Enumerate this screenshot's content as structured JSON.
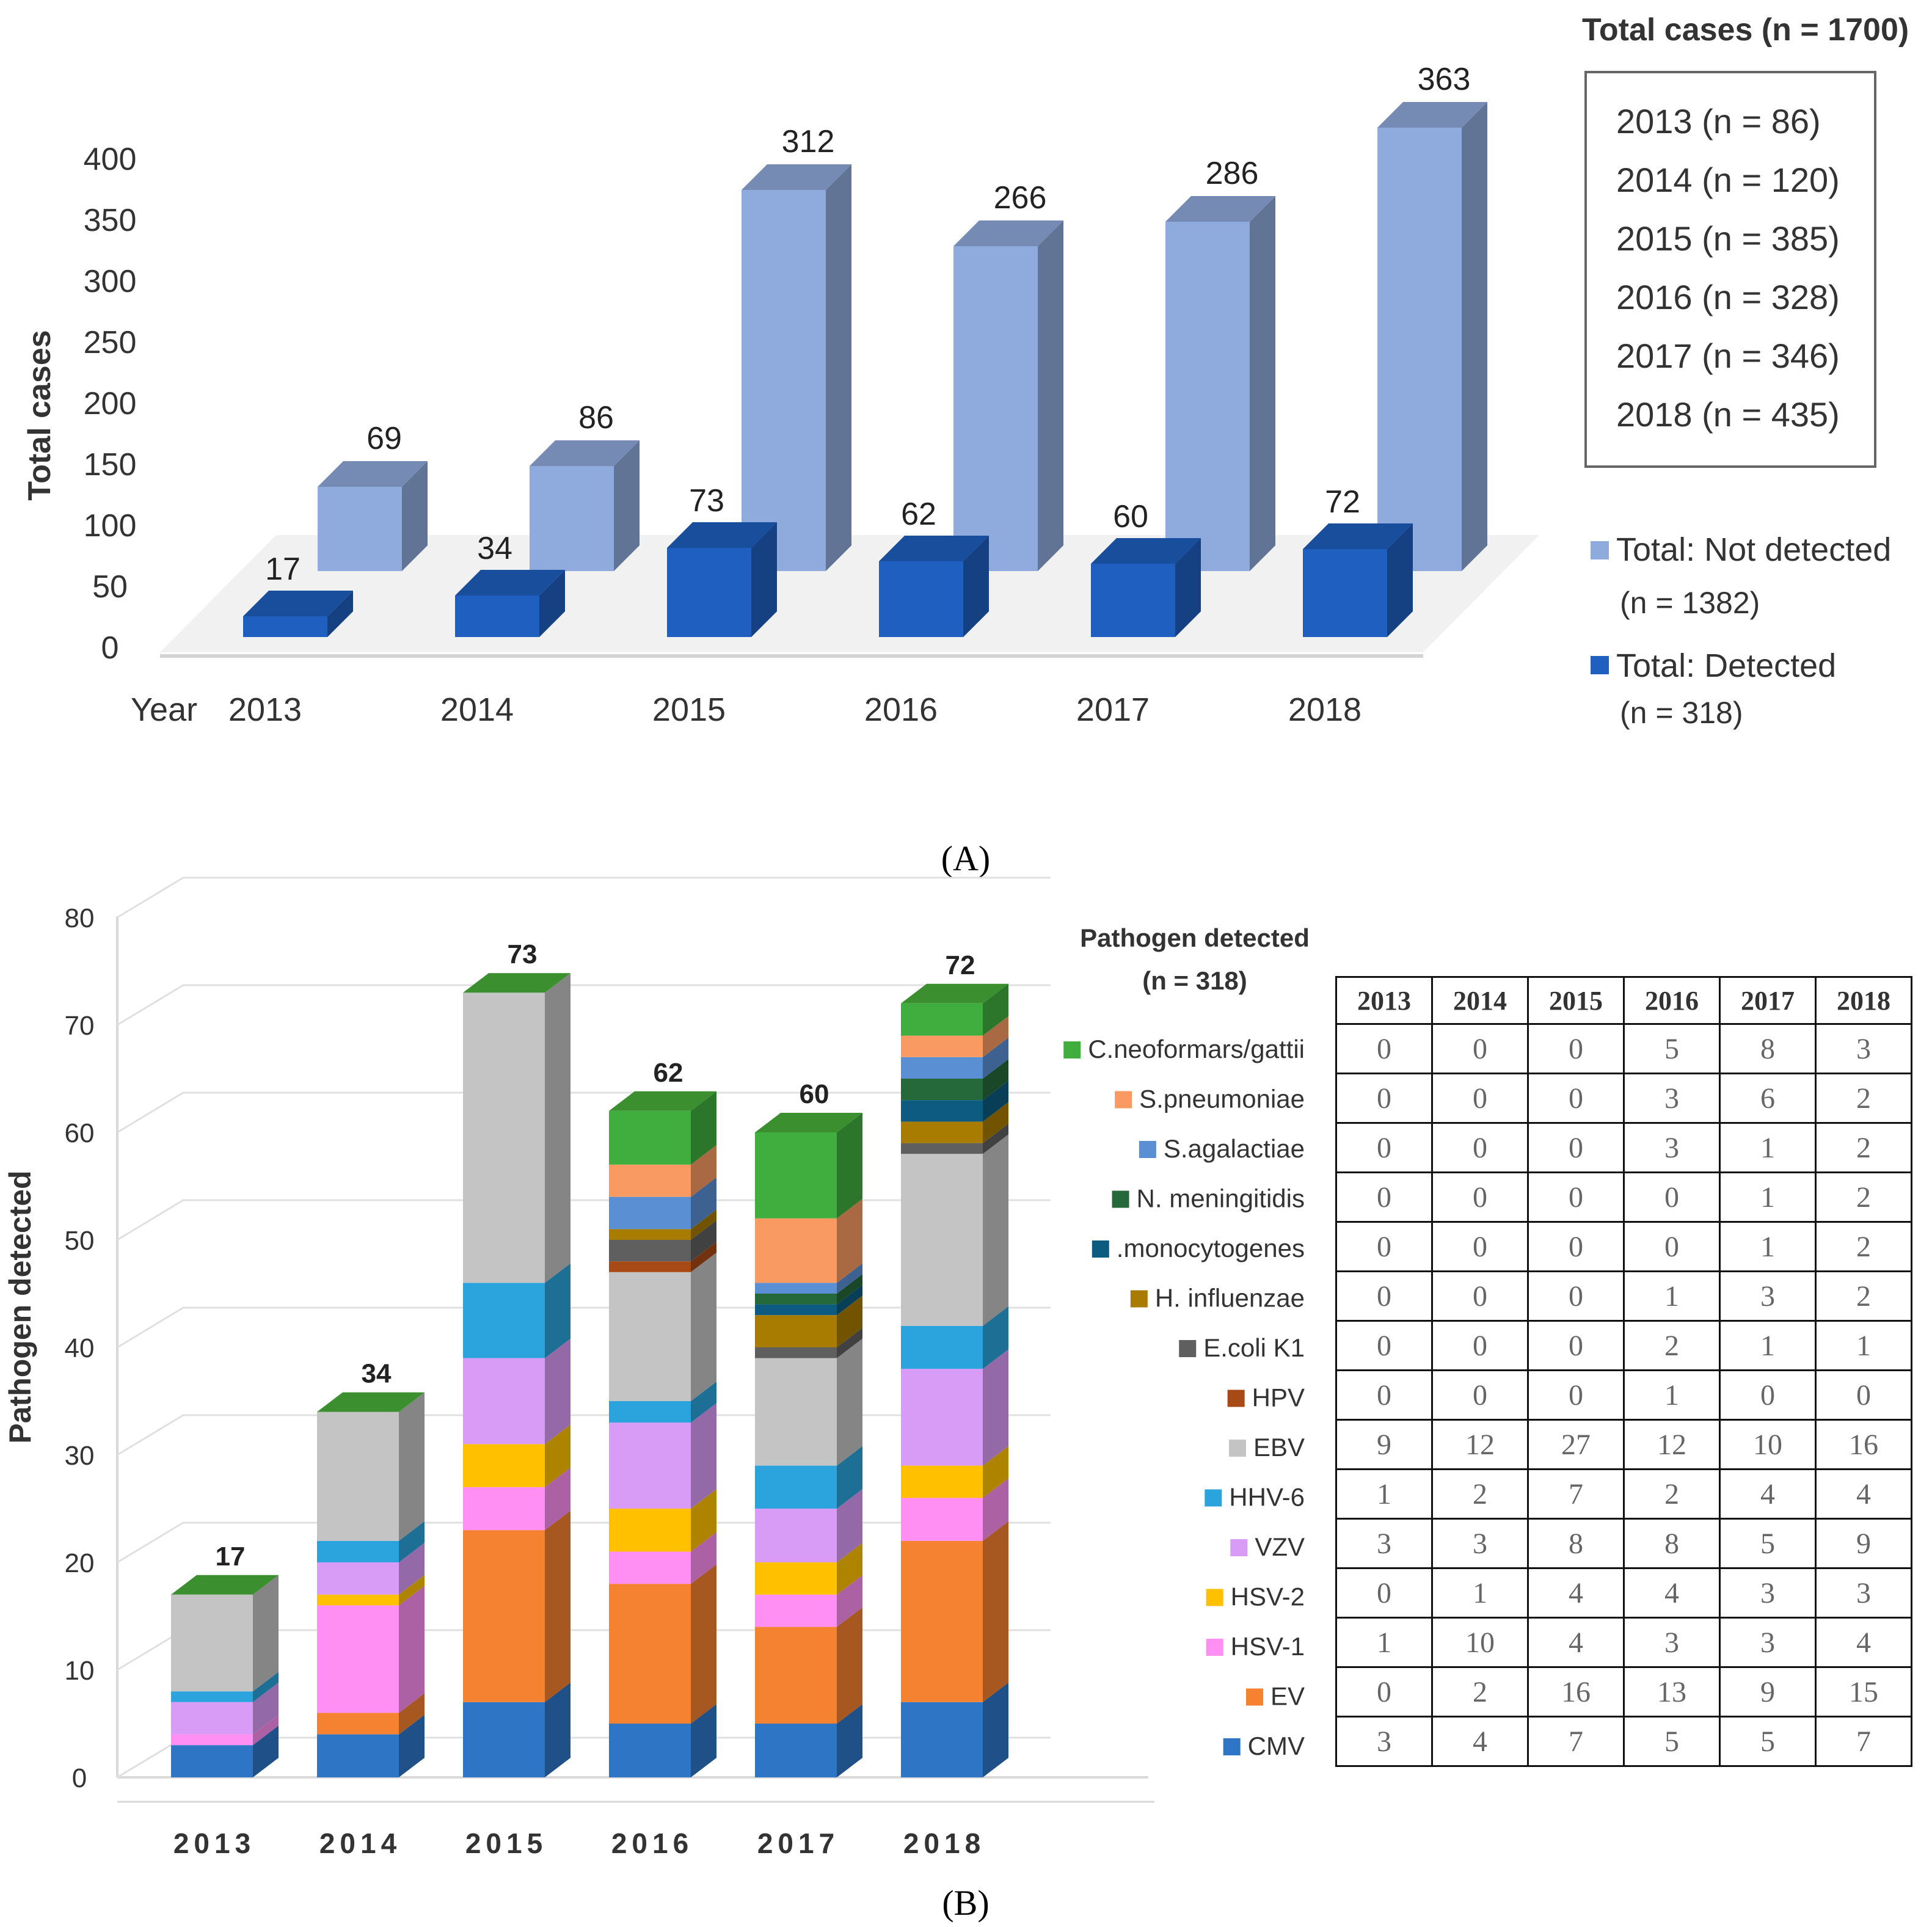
{
  "chart_data": [
    {
      "type": "bar",
      "panel": "A",
      "title": "",
      "ylabel": "Total cases",
      "xlabel": "Year",
      "ylim": [
        0,
        400
      ],
      "yticks": [
        0,
        50,
        100,
        150,
        200,
        250,
        300,
        350,
        400
      ],
      "categories": [
        "2013",
        "2014",
        "2015",
        "2016",
        "2017",
        "2018"
      ],
      "series": [
        {
          "name": "Total: Detected",
          "count_label": "(n = 318)",
          "color": "#1f5fbf",
          "values": [
            17,
            34,
            73,
            62,
            60,
            72
          ]
        },
        {
          "name": "Total: Not detected",
          "count_label": "(n = 1382)",
          "color": "#8faadc",
          "values": [
            69,
            86,
            312,
            266,
            286,
            363
          ]
        }
      ],
      "totals_box": {
        "title": "Total cases (n = 1700)",
        "entries": [
          "2013 (n = 86)",
          "2014 (n = 120)",
          "2015 (n = 385)",
          "2016 (n = 328)",
          "2017 (n = 346)",
          "2018 (n = 435)"
        ]
      }
    },
    {
      "type": "bar",
      "stacked": true,
      "panel": "B",
      "ylabel": "Pathogen detected",
      "ylim": [
        0,
        80
      ],
      "yticks": [
        0,
        10,
        20,
        30,
        40,
        50,
        60,
        70,
        80
      ],
      "categories": [
        "2013",
        "2014",
        "2015",
        "2016",
        "2017",
        "2018"
      ],
      "totals": [
        17,
        34,
        73,
        62,
        60,
        72
      ],
      "legend_title": "Pathogen detected",
      "legend_subtitle": "(n = 318)",
      "series": [
        {
          "name": "CMV",
          "color": "#2e75c6",
          "values": [
            3,
            4,
            7,
            5,
            5,
            7
          ]
        },
        {
          "name": "EV",
          "color": "#f58231",
          "values": [
            0,
            2,
            16,
            13,
            9,
            15
          ]
        },
        {
          "name": "HSV-1",
          "color": "#ff8ff2",
          "values": [
            1,
            10,
            4,
            3,
            3,
            4
          ]
        },
        {
          "name": "HSV-2",
          "color": "#ffc000",
          "values": [
            0,
            1,
            4,
            4,
            3,
            3
          ]
        },
        {
          "name": "VZV",
          "color": "#d89cf6",
          "values": [
            3,
            3,
            8,
            8,
            5,
            9
          ]
        },
        {
          "name": "HHV-6",
          "color": "#2ba3dc",
          "values": [
            1,
            2,
            7,
            2,
            4,
            4
          ]
        },
        {
          "name": "EBV",
          "color": "#c4c4c4",
          "values": [
            9,
            12,
            27,
            12,
            10,
            16
          ]
        },
        {
          "name": "HPV",
          "color": "#a84a16",
          "values": [
            0,
            0,
            0,
            1,
            0,
            0
          ]
        },
        {
          "name": "E.coli K1",
          "color": "#5f5f5f",
          "values": [
            0,
            0,
            0,
            2,
            1,
            1
          ]
        },
        {
          "name": "H. influenzae",
          "color": "#a87c00",
          "values": [
            0,
            0,
            0,
            1,
            3,
            2
          ]
        },
        {
          "name": ".monocytogenes",
          "color": "#0d5b80",
          "values": [
            0,
            0,
            0,
            0,
            1,
            2
          ]
        },
        {
          "name": "N. meningitidis",
          "color": "#25683a",
          "values": [
            0,
            0,
            0,
            0,
            1,
            2
          ]
        },
        {
          "name": "S.agalactiae",
          "color": "#5a8fd4",
          "values": [
            0,
            0,
            0,
            3,
            1,
            2
          ]
        },
        {
          "name": "S.pneumoniae",
          "color": "#f99a62",
          "values": [
            0,
            0,
            0,
            3,
            6,
            2
          ]
        },
        {
          "name": "C.neoformars/gattii",
          "color": "#3fae3f",
          "values": [
            0,
            0,
            0,
            5,
            8,
            3
          ]
        }
      ],
      "table": {
        "headers": [
          "2013",
          "2014",
          "2015",
          "2016",
          "2017",
          "2018"
        ],
        "rows": [
          [
            "0",
            "0",
            "0",
            "5",
            "8",
            "3"
          ],
          [
            "0",
            "0",
            "0",
            "3",
            "6",
            "2"
          ],
          [
            "0",
            "0",
            "0",
            "3",
            "1",
            "2"
          ],
          [
            "0",
            "0",
            "0",
            "0",
            "1",
            "2"
          ],
          [
            "0",
            "0",
            "0",
            "0",
            "1",
            "2"
          ],
          [
            "0",
            "0",
            "0",
            "1",
            "3",
            "2"
          ],
          [
            "0",
            "0",
            "0",
            "2",
            "1",
            "1"
          ],
          [
            "0",
            "0",
            "0",
            "1",
            "0",
            "0"
          ],
          [
            "9",
            "12",
            "27",
            "12",
            "10",
            "16"
          ],
          [
            "1",
            "2",
            "7",
            "2",
            "4",
            "4"
          ],
          [
            "3",
            "3",
            "8",
            "8",
            "5",
            "9"
          ],
          [
            "0",
            "1",
            "4",
            "4",
            "3",
            "3"
          ],
          [
            "1",
            "10",
            "4",
            "3",
            "3",
            "4"
          ],
          [
            "0",
            "2",
            "16",
            "13",
            "9",
            "15"
          ],
          [
            "3",
            "4",
            "7",
            "5",
            "5",
            "7"
          ]
        ]
      }
    }
  ],
  "panel_labels": {
    "a": "(A)",
    "b": "(B)"
  }
}
